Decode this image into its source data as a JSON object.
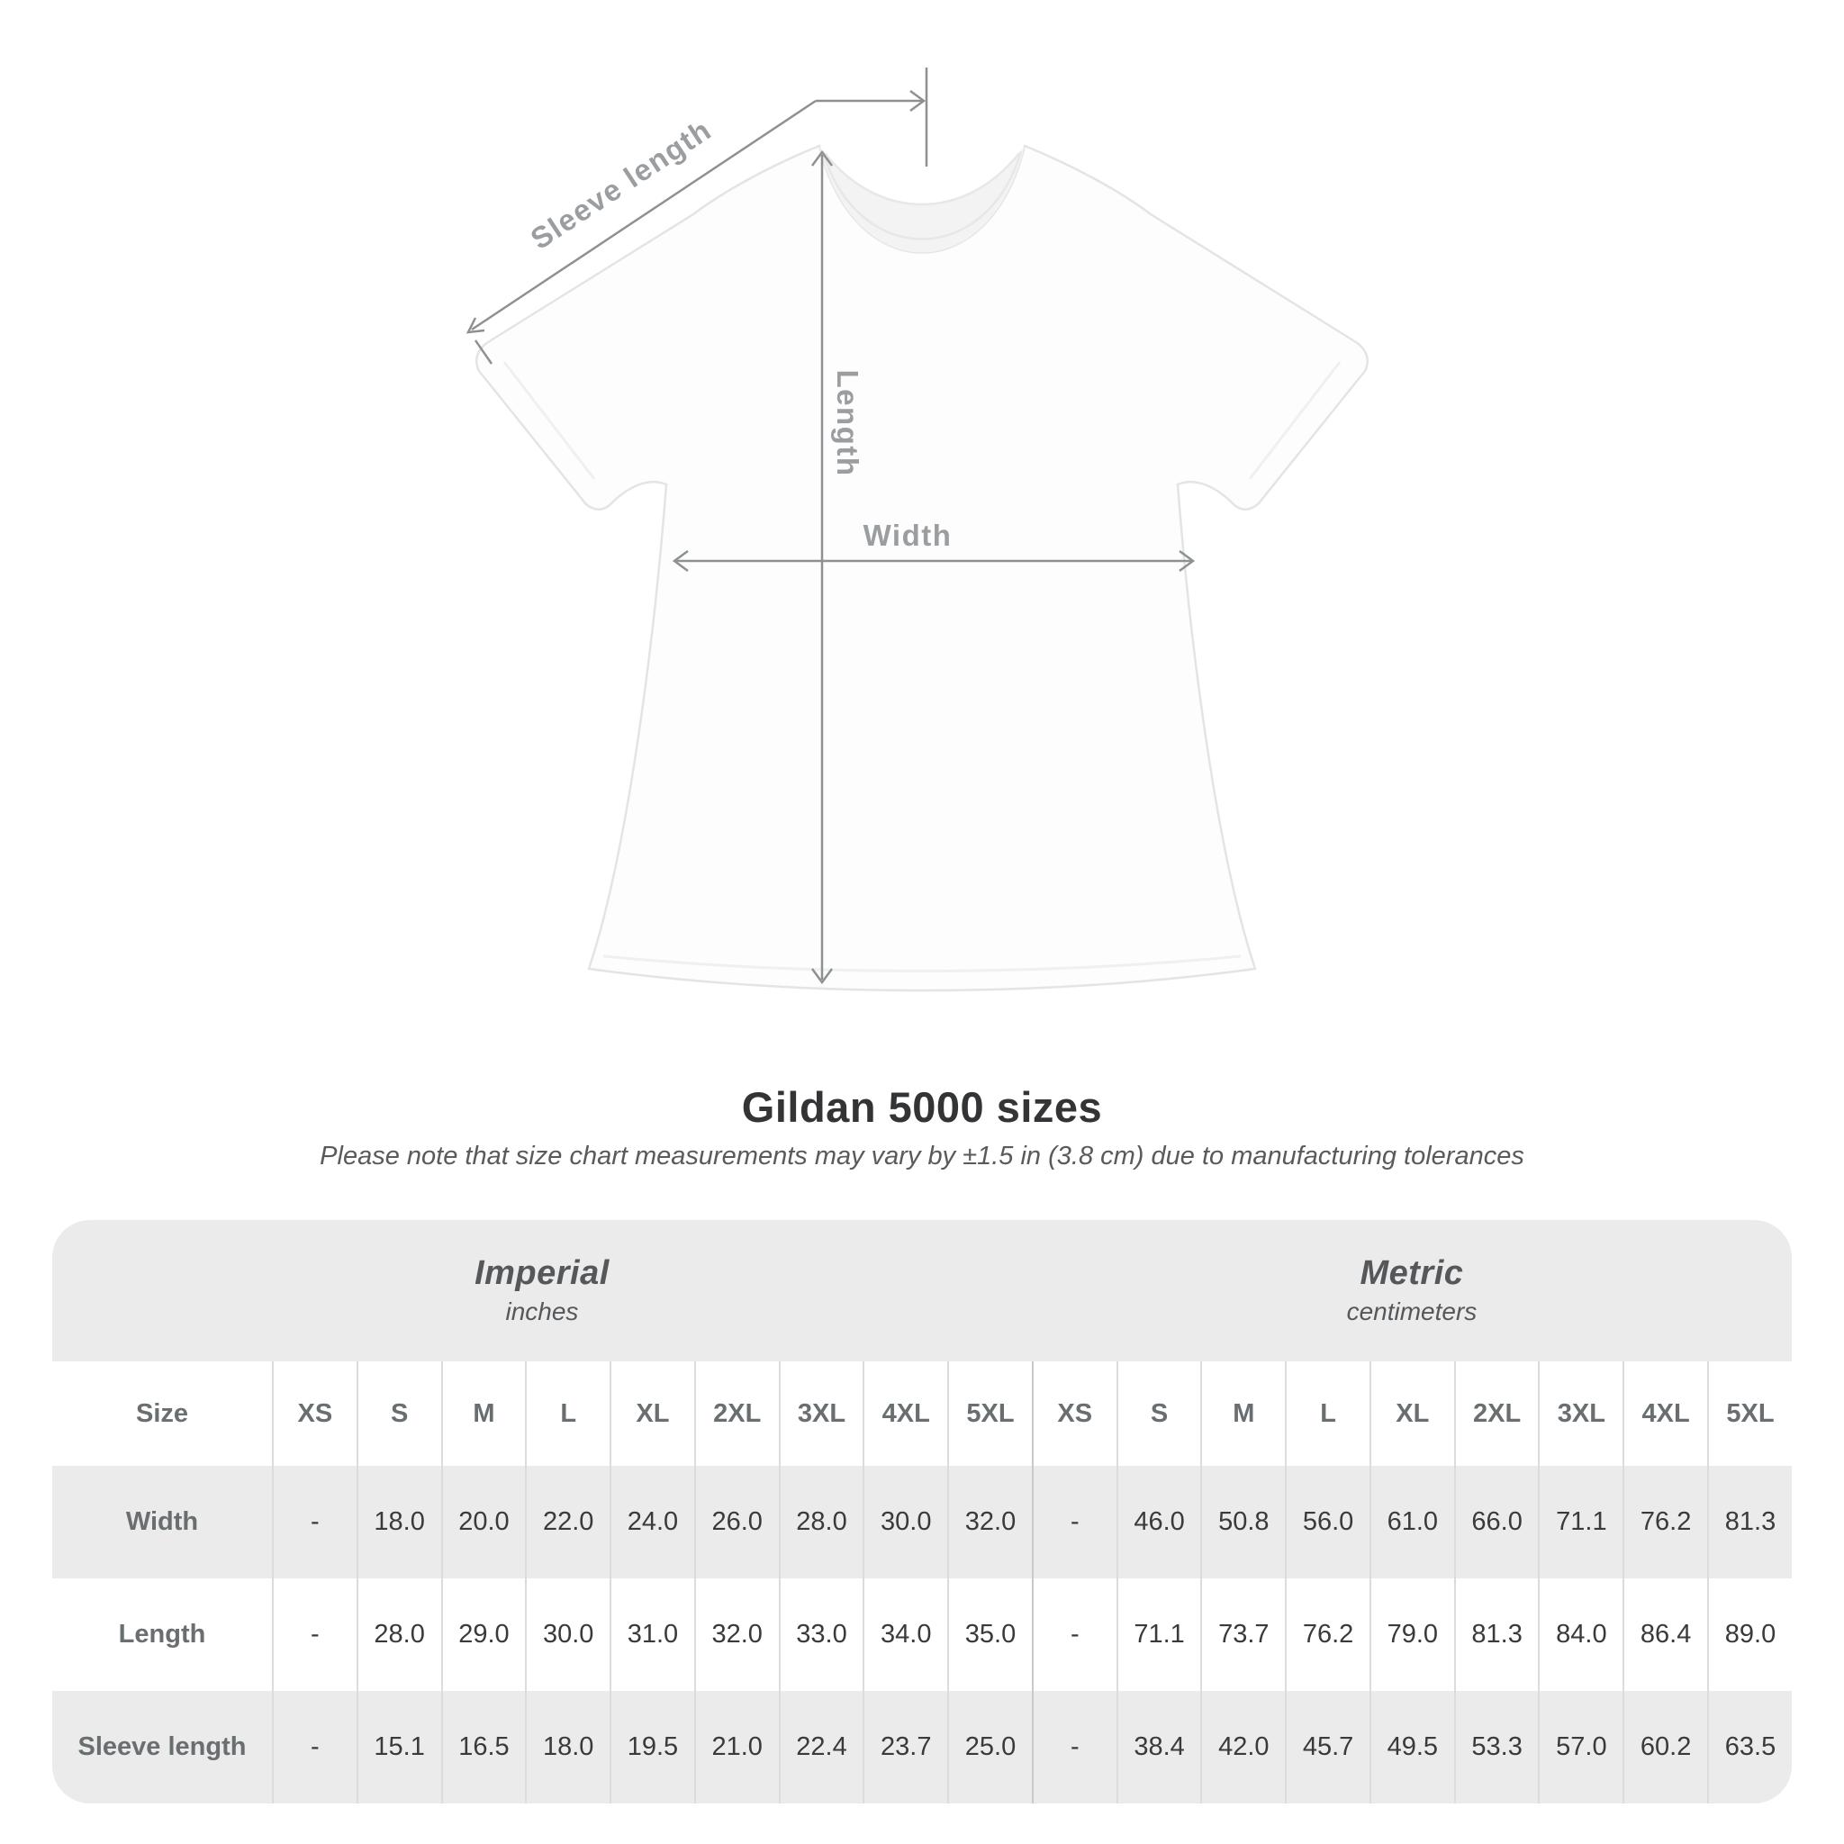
{
  "diagram": {
    "labels": {
      "sleeve_length": "Sleeve length",
      "length": "Length",
      "width": "Width"
    },
    "line_color": "#8e9193",
    "label_color": "#9b9ea1"
  },
  "header": {
    "title": "Gildan 5000 sizes",
    "subtitle": "Please note that size chart measurements may vary by ±1.5 in (3.8 cm) due to manufacturing tolerances"
  },
  "table": {
    "band_bg": "#ebebeb",
    "header_text_color": "#696e71",
    "value_text_color": "#3a3a3a"
  },
  "chart_data": {
    "type": "table",
    "title": "Gildan 5000 sizes",
    "size_header": "Size",
    "unit_groups": [
      {
        "label": "Imperial",
        "sublabel": "inches"
      },
      {
        "label": "Metric",
        "sublabel": "centimeters"
      }
    ],
    "sizes": [
      "XS",
      "S",
      "M",
      "L",
      "XL",
      "2XL",
      "3XL",
      "4XL",
      "5XL"
    ],
    "rows": [
      {
        "label": "Width",
        "imperial": [
          "-",
          "18.0",
          "20.0",
          "22.0",
          "24.0",
          "26.0",
          "28.0",
          "30.0",
          "32.0"
        ],
        "metric": [
          "-",
          "46.0",
          "50.8",
          "56.0",
          "61.0",
          "66.0",
          "71.1",
          "76.2",
          "81.3"
        ]
      },
      {
        "label": "Length",
        "imperial": [
          "-",
          "28.0",
          "29.0",
          "30.0",
          "31.0",
          "32.0",
          "33.0",
          "34.0",
          "35.0"
        ],
        "metric": [
          "-",
          "71.1",
          "73.7",
          "76.2",
          "79.0",
          "81.3",
          "84.0",
          "86.4",
          "89.0"
        ]
      },
      {
        "label": "Sleeve length",
        "imperial": [
          "-",
          "15.1",
          "16.5",
          "18.0",
          "19.5",
          "21.0",
          "22.4",
          "23.7",
          "25.0"
        ],
        "metric": [
          "-",
          "38.4",
          "42.0",
          "45.7",
          "49.5",
          "53.3",
          "57.0",
          "60.2",
          "63.5"
        ]
      }
    ]
  }
}
